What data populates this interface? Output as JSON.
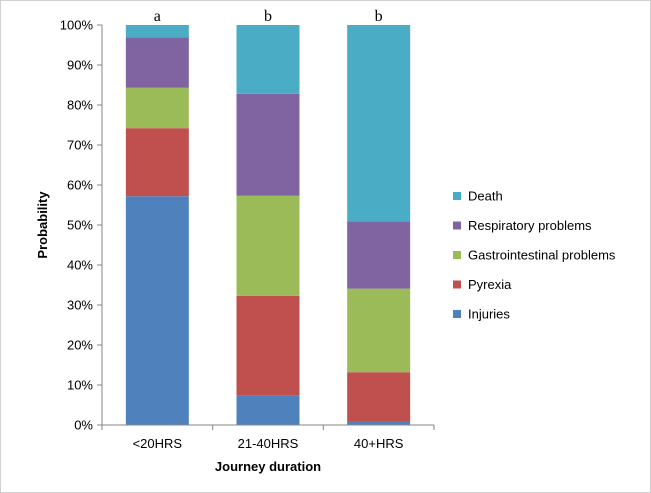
{
  "chart_data": {
    "type": "bar",
    "stacked": true,
    "normalized": true,
    "categories": [
      "<20HRS",
      "21-40HRS",
      "40+HRS"
    ],
    "significance_labels": [
      "a",
      "b",
      "b"
    ],
    "series": [
      {
        "name": "Injuries",
        "color": "#4F81BD",
        "values": [
          57.2,
          7.3,
          1.0
        ]
      },
      {
        "name": "Pyrexia",
        "color": "#C0504D",
        "values": [
          17.0,
          25.0,
          12.2
        ]
      },
      {
        "name": "Gastrointestinal problems",
        "color": "#9BBB59",
        "values": [
          10.1,
          25.0,
          20.9
        ]
      },
      {
        "name": "Respiratory problems",
        "color": "#8064A2",
        "values": [
          12.6,
          25.5,
          16.8
        ]
      },
      {
        "name": "Death",
        "color": "#4BACC6",
        "values": [
          3.1,
          17.2,
          49.1
        ]
      }
    ],
    "legend_order": [
      "Death",
      "Respiratory problems",
      "Gastrointestinal problems",
      "Pyrexia",
      "Injuries"
    ],
    "legend_position": "right",
    "xlabel": "Journey duration",
    "ylabel": "Probability",
    "ylim": [
      0,
      100
    ],
    "yticks": [
      0,
      10,
      20,
      30,
      40,
      50,
      60,
      70,
      80,
      90,
      100
    ],
    "ytick_suffix": "%",
    "grid": false
  }
}
